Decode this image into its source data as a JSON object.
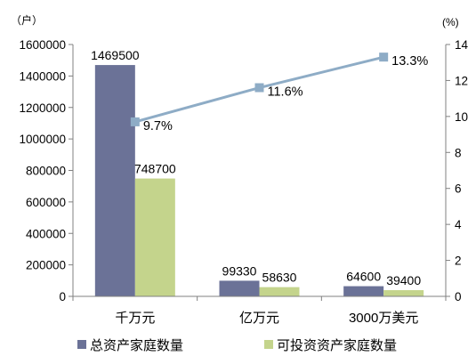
{
  "chart_data": {
    "type": "bar",
    "categories": [
      "千万元",
      "亿万元",
      "3000万美元"
    ],
    "series": [
      {
        "name": "总资产家庭数量",
        "axis": "left",
        "color": "#6b7297",
        "values": [
          1469500,
          99330,
          64600
        ],
        "labels": [
          "1469500",
          "99330",
          "64600"
        ]
      },
      {
        "name": "可投资资产家庭数量",
        "axis": "left",
        "color": "#c4d48c",
        "values": [
          748700,
          58630,
          39400
        ],
        "labels": [
          "748700",
          "58630",
          "39400"
        ]
      },
      {
        "type": "line",
        "axis": "right",
        "color": "#8eacc6",
        "values": [
          9.7,
          11.6,
          13.3
        ],
        "labels": [
          "9.7%",
          "11.6%",
          "13.3%"
        ]
      }
    ],
    "left_axis": {
      "unit": "（户）",
      "ylim": [
        0,
        1600000
      ],
      "ticks": [
        0,
        200000,
        400000,
        600000,
        800000,
        1000000,
        1200000,
        1400000,
        1600000
      ],
      "tick_labels": [
        "0",
        "200000",
        "400000",
        "600000",
        "800000",
        "1000000",
        "1200000",
        "1400000",
        "1600000"
      ]
    },
    "right_axis": {
      "unit": "(%)",
      "ylim": [
        0,
        14
      ],
      "ticks": [
        0,
        2,
        4,
        6,
        8,
        10,
        12,
        14
      ],
      "tick_labels": [
        "0",
        "2",
        "4",
        "6",
        "8",
        "10",
        "12",
        "14"
      ]
    },
    "grid": false,
    "legend_position": "bottom"
  }
}
